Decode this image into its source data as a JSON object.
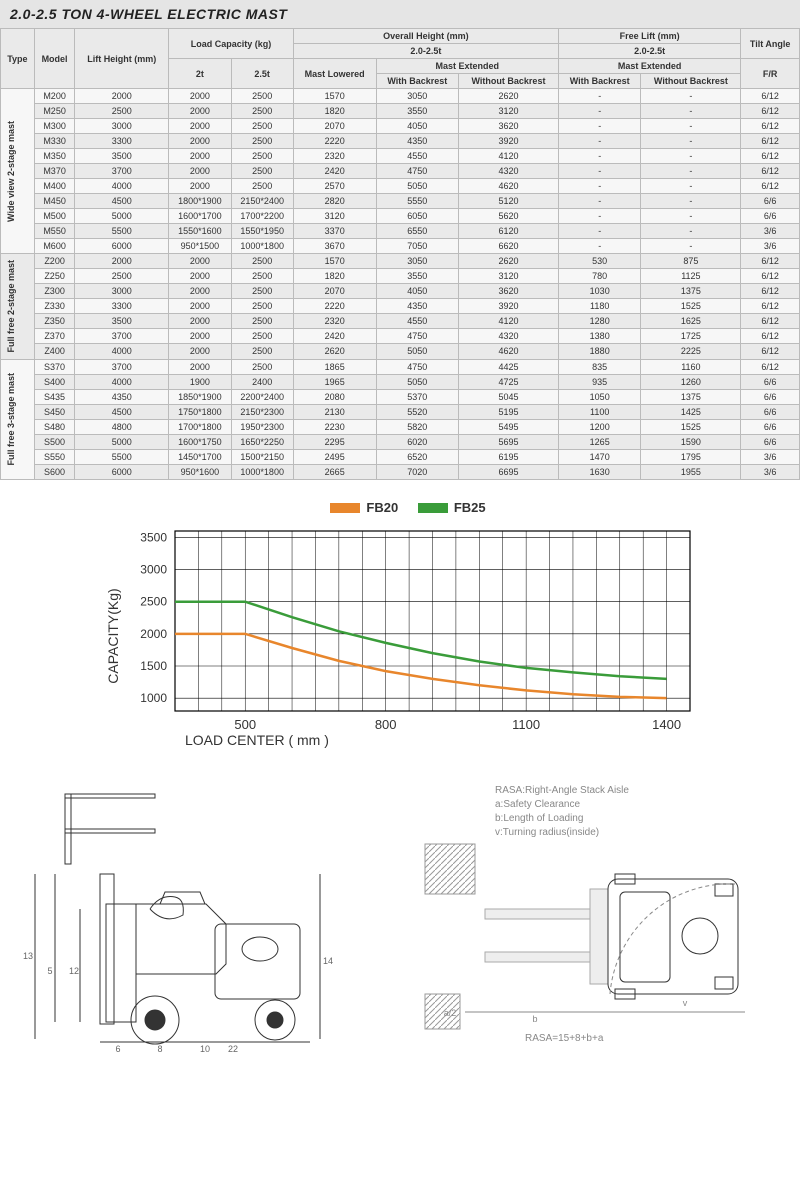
{
  "title": "2.0-2.5 TON 4-WHEEL ELECTRIC MAST",
  "table": {
    "headers": {
      "type": "Type",
      "model": "Model",
      "liftHeight": "Lift Height (mm)",
      "loadCapacity": "Load Capacity (kg)",
      "lc_2t": "2t",
      "lc_25t": "2.5t",
      "overallHeight": "Overall Height (mm)",
      "range": "2.0-2.5t",
      "mastLowered": "Mast Lowered",
      "mastExtended": "Mast Extended",
      "withBackrest": "With Backrest",
      "withoutBackrest": "Without Backrest",
      "freeLift": "Free Lift (mm)",
      "tiltAngle": "Tilt Angle",
      "fr": "F/R"
    },
    "groups": [
      {
        "label": "Wide view 2-stage mast",
        "rows": [
          {
            "model": "M200",
            "lh": "2000",
            "c2": "2000",
            "c25": "2500",
            "ml": "1570",
            "wb": "3050",
            "wob": "2620",
            "flw": "-",
            "flwo": "-",
            "tilt": "6/12"
          },
          {
            "model": "M250",
            "lh": "2500",
            "c2": "2000",
            "c25": "2500",
            "ml": "1820",
            "wb": "3550",
            "wob": "3120",
            "flw": "-",
            "flwo": "-",
            "tilt": "6/12"
          },
          {
            "model": "M300",
            "lh": "3000",
            "c2": "2000",
            "c25": "2500",
            "ml": "2070",
            "wb": "4050",
            "wob": "3620",
            "flw": "-",
            "flwo": "-",
            "tilt": "6/12"
          },
          {
            "model": "M330",
            "lh": "3300",
            "c2": "2000",
            "c25": "2500",
            "ml": "2220",
            "wb": "4350",
            "wob": "3920",
            "flw": "-",
            "flwo": "-",
            "tilt": "6/12"
          },
          {
            "model": "M350",
            "lh": "3500",
            "c2": "2000",
            "c25": "2500",
            "ml": "2320",
            "wb": "4550",
            "wob": "4120",
            "flw": "-",
            "flwo": "-",
            "tilt": "6/12"
          },
          {
            "model": "M370",
            "lh": "3700",
            "c2": "2000",
            "c25": "2500",
            "ml": "2420",
            "wb": "4750",
            "wob": "4320",
            "flw": "-",
            "flwo": "-",
            "tilt": "6/12"
          },
          {
            "model": "M400",
            "lh": "4000",
            "c2": "2000",
            "c25": "2500",
            "ml": "2570",
            "wb": "5050",
            "wob": "4620",
            "flw": "-",
            "flwo": "-",
            "tilt": "6/12"
          },
          {
            "model": "M450",
            "lh": "4500",
            "c2": "1800*1900",
            "c25": "2150*2400",
            "ml": "2820",
            "wb": "5550",
            "wob": "5120",
            "flw": "-",
            "flwo": "-",
            "tilt": "6/6"
          },
          {
            "model": "M500",
            "lh": "5000",
            "c2": "1600*1700",
            "c25": "1700*2200",
            "ml": "3120",
            "wb": "6050",
            "wob": "5620",
            "flw": "-",
            "flwo": "-",
            "tilt": "6/6"
          },
          {
            "model": "M550",
            "lh": "5500",
            "c2": "1550*1600",
            "c25": "1550*1950",
            "ml": "3370",
            "wb": "6550",
            "wob": "6120",
            "flw": "-",
            "flwo": "-",
            "tilt": "3/6"
          },
          {
            "model": "M600",
            "lh": "6000",
            "c2": "950*1500",
            "c25": "1000*1800",
            "ml": "3670",
            "wb": "7050",
            "wob": "6620",
            "flw": "-",
            "flwo": "-",
            "tilt": "3/6"
          }
        ]
      },
      {
        "label": "Full free 2-stage mast",
        "rows": [
          {
            "model": "Z200",
            "lh": "2000",
            "c2": "2000",
            "c25": "2500",
            "ml": "1570",
            "wb": "3050",
            "wob": "2620",
            "flw": "530",
            "flwo": "875",
            "tilt": "6/12"
          },
          {
            "model": "Z250",
            "lh": "2500",
            "c2": "2000",
            "c25": "2500",
            "ml": "1820",
            "wb": "3550",
            "wob": "3120",
            "flw": "780",
            "flwo": "1125",
            "tilt": "6/12"
          },
          {
            "model": "Z300",
            "lh": "3000",
            "c2": "2000",
            "c25": "2500",
            "ml": "2070",
            "wb": "4050",
            "wob": "3620",
            "flw": "1030",
            "flwo": "1375",
            "tilt": "6/12"
          },
          {
            "model": "Z330",
            "lh": "3300",
            "c2": "2000",
            "c25": "2500",
            "ml": "2220",
            "wb": "4350",
            "wob": "3920",
            "flw": "1180",
            "flwo": "1525",
            "tilt": "6/12"
          },
          {
            "model": "Z350",
            "lh": "3500",
            "c2": "2000",
            "c25": "2500",
            "ml": "2320",
            "wb": "4550",
            "wob": "4120",
            "flw": "1280",
            "flwo": "1625",
            "tilt": "6/12"
          },
          {
            "model": "Z370",
            "lh": "3700",
            "c2": "2000",
            "c25": "2500",
            "ml": "2420",
            "wb": "4750",
            "wob": "4320",
            "flw": "1380",
            "flwo": "1725",
            "tilt": "6/12"
          },
          {
            "model": "Z400",
            "lh": "4000",
            "c2": "2000",
            "c25": "2500",
            "ml": "2620",
            "wb": "5050",
            "wob": "4620",
            "flw": "1880",
            "flwo": "2225",
            "tilt": "6/12"
          }
        ]
      },
      {
        "label": "Full free 3-stage mast",
        "rows": [
          {
            "model": "S370",
            "lh": "3700",
            "c2": "2000",
            "c25": "2500",
            "ml": "1865",
            "wb": "4750",
            "wob": "4425",
            "flw": "835",
            "flwo": "1160",
            "tilt": "6/12"
          },
          {
            "model": "S400",
            "lh": "4000",
            "c2": "1900",
            "c25": "2400",
            "ml": "1965",
            "wb": "5050",
            "wob": "4725",
            "flw": "935",
            "flwo": "1260",
            "tilt": "6/6"
          },
          {
            "model": "S435",
            "lh": "4350",
            "c2": "1850*1900",
            "c25": "2200*2400",
            "ml": "2080",
            "wb": "5370",
            "wob": "5045",
            "flw": "1050",
            "flwo": "1375",
            "tilt": "6/6"
          },
          {
            "model": "S450",
            "lh": "4500",
            "c2": "1750*1800",
            "c25": "2150*2300",
            "ml": "2130",
            "wb": "5520",
            "wob": "5195",
            "flw": "1100",
            "flwo": "1425",
            "tilt": "6/6"
          },
          {
            "model": "S480",
            "lh": "4800",
            "c2": "1700*1800",
            "c25": "1950*2300",
            "ml": "2230",
            "wb": "5820",
            "wob": "5495",
            "flw": "1200",
            "flwo": "1525",
            "tilt": "6/6"
          },
          {
            "model": "S500",
            "lh": "5000",
            "c2": "1600*1750",
            "c25": "1650*2250",
            "ml": "2295",
            "wb": "6020",
            "wob": "5695",
            "flw": "1265",
            "flwo": "1590",
            "tilt": "6/6"
          },
          {
            "model": "S550",
            "lh": "5500",
            "c2": "1450*1700",
            "c25": "1500*2150",
            "ml": "2495",
            "wb": "6520",
            "wob": "6195",
            "flw": "1470",
            "flwo": "1795",
            "tilt": "3/6"
          },
          {
            "model": "S600",
            "lh": "6000",
            "c2": "950*1600",
            "c25": "1000*1800",
            "ml": "2665",
            "wb": "7020",
            "wob": "6695",
            "flw": "1630",
            "flwo": "1955",
            "tilt": "3/6"
          }
        ]
      }
    ]
  },
  "chart": {
    "legend": {
      "fb20": "FB20",
      "fb25": "FB25"
    },
    "colors": {
      "fb20": "#e8862c",
      "fb25": "#3a9c3a",
      "grid": "#000",
      "bg": "#fff"
    },
    "ylabel": "CAPACITY(Kg)",
    "xlabel": "LOAD CENTER ( mm )",
    "ylim": [
      800,
      3600
    ],
    "yticks": [
      1000,
      1500,
      2000,
      2500,
      3000,
      3500
    ],
    "xlim": [
      350,
      1450
    ],
    "xticks": [
      500,
      800,
      1100,
      1400
    ],
    "line_width": 2.5,
    "series": {
      "fb20": [
        [
          350,
          2000
        ],
        [
          500,
          2000
        ],
        [
          600,
          1780
        ],
        [
          700,
          1580
        ],
        [
          800,
          1420
        ],
        [
          900,
          1300
        ],
        [
          1000,
          1200
        ],
        [
          1100,
          1120
        ],
        [
          1200,
          1060
        ],
        [
          1300,
          1020
        ],
        [
          1400,
          1000
        ]
      ],
      "fb25": [
        [
          350,
          2500
        ],
        [
          500,
          2500
        ],
        [
          600,
          2260
        ],
        [
          700,
          2040
        ],
        [
          800,
          1860
        ],
        [
          900,
          1700
        ],
        [
          1000,
          1570
        ],
        [
          1100,
          1470
        ],
        [
          1200,
          1400
        ],
        [
          1300,
          1340
        ],
        [
          1400,
          1300
        ]
      ]
    }
  },
  "diagramLabels": {
    "left": {
      "d5": "5",
      "d6": "6",
      "d8": "8",
      "d10": "10",
      "d12": "12",
      "d13": "13",
      "d14": "14",
      "d22": "22"
    },
    "right": {
      "rasa": "RASA:Right-Angle Stack Aisle",
      "a": "a:Safety Clearance",
      "b": "b:Length of Loading",
      "v": "v:Turning radius(inside)",
      "formula": "RASA=15+8+b+a",
      "la2": "a/2",
      "lb": "b",
      "lv": "v"
    }
  }
}
